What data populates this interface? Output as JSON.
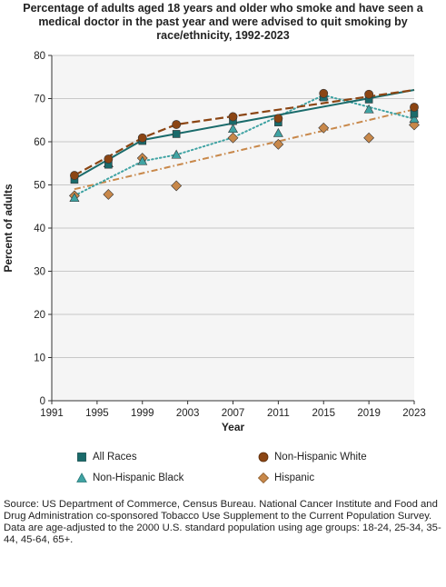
{
  "chart_data": {
    "type": "line",
    "title": "Percentage of adults aged 18 years and older who smoke and have seen a medical doctor in the past year and were advised to quit smoking by race/ethnicity, 1992-2023",
    "xlabel": "Year",
    "ylabel": "Percent of adults",
    "xlim": [
      1991,
      2023
    ],
    "ylim": [
      0,
      80
    ],
    "x_ticks": [
      1991,
      1995,
      1999,
      2003,
      2007,
      2011,
      2015,
      2019,
      2023
    ],
    "y_ticks": [
      0,
      10,
      20,
      30,
      40,
      50,
      60,
      70,
      80
    ],
    "grid": "horizontal",
    "legend_position": "bottom",
    "series": [
      {
        "name": "All Races",
        "marker": "square",
        "color": "#1a6b6b",
        "line_style": "solid",
        "points": [
          [
            1993,
            51.2
          ],
          [
            1996,
            54.7
          ],
          [
            1999,
            60.2
          ],
          [
            2002,
            61.8
          ],
          [
            2007,
            64.8
          ],
          [
            2011,
            64.5
          ],
          [
            2015,
            70.3
          ],
          [
            2019,
            69.8
          ],
          [
            2023,
            66.5
          ]
        ],
        "trend": [
          [
            1993,
            51.4
          ],
          [
            1999,
            60.4
          ],
          [
            2023,
            72.0
          ]
        ]
      },
      {
        "name": "Non-Hispanic White",
        "marker": "circle",
        "color": "#8b4513",
        "line_style": "dashed",
        "points": [
          [
            1993,
            52.2
          ],
          [
            1996,
            56.0
          ],
          [
            1999,
            60.9
          ],
          [
            2002,
            64.0
          ],
          [
            2007,
            65.8
          ],
          [
            2011,
            65.4
          ],
          [
            2015,
            71.2
          ],
          [
            2019,
            71.0
          ],
          [
            2023,
            68.0
          ]
        ],
        "trend": [
          [
            1993,
            52.2
          ],
          [
            1999,
            60.9
          ],
          [
            2002,
            64.0
          ],
          [
            2023,
            72.0
          ]
        ]
      },
      {
        "name": "Non-Hispanic Black",
        "marker": "triangle",
        "color": "#3fa3a3",
        "line_style": "dotted",
        "points": [
          [
            1993,
            47.0
          ],
          [
            1996,
            55.0
          ],
          [
            1999,
            55.5
          ],
          [
            2002,
            57.0
          ],
          [
            2007,
            63.0
          ],
          [
            2011,
            62.0
          ],
          [
            2015,
            70.5
          ],
          [
            2019,
            67.5
          ],
          [
            2023,
            65.3
          ]
        ],
        "trend": [
          [
            1993,
            47.5
          ],
          [
            1999,
            55.5
          ],
          [
            2002,
            57.0
          ],
          [
            2007,
            61.0
          ],
          [
            2015,
            70.8
          ],
          [
            2023,
            65.3
          ]
        ]
      },
      {
        "name": "Hispanic",
        "marker": "diamond",
        "color": "#c8884a",
        "line_style": "dash-dot",
        "points": [
          [
            1993,
            47.5
          ],
          [
            1996,
            47.8
          ],
          [
            1999,
            56.2
          ],
          [
            2002,
            49.8
          ],
          [
            2007,
            60.9
          ],
          [
            2011,
            59.4
          ],
          [
            2015,
            63.2
          ],
          [
            2019,
            60.9
          ],
          [
            2023,
            63.9
          ]
        ],
        "trend": [
          [
            1993,
            49.0
          ],
          [
            2023,
            67.5
          ]
        ]
      }
    ]
  },
  "source_note": {
    "line1": "Source: US Department of Commerce, Census Bureau. National Cancer Institute and Food and Drug Administration co-sponsored Tobacco Use Supplement to the Current Population Survey.",
    "line2": "Data are age-adjusted to the 2000 U.S. standard population using age groups: 18-24, 25-34, 35-44, 45-64, 65+."
  },
  "colors": {
    "plot_background": "#f5f5f5",
    "gridline": "#c8c8c8",
    "axis": "#333333"
  }
}
